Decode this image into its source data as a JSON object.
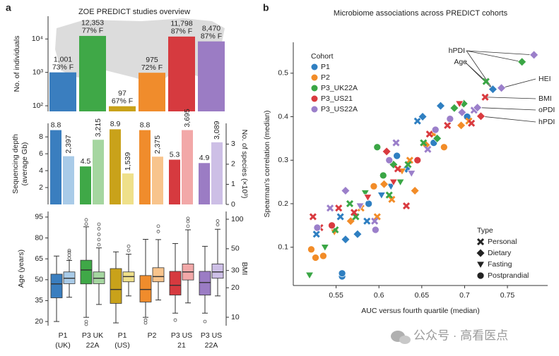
{
  "chart_data": [
    {
      "type": "bar",
      "panel_label": "a",
      "title": "ZOE PREDICT studies overview",
      "y_label": "No. of individuals",
      "log_y": true,
      "ylim": [
        68,
        48000
      ],
      "yticks": [
        {
          "value": 100,
          "label": "10²"
        },
        {
          "value": 1000,
          "label": "10³"
        },
        {
          "value": 10000,
          "label": "10⁴"
        }
      ],
      "values": [
        1001,
        12353,
        97,
        975,
        11798,
        8470
      ],
      "value_labels": [
        "1,001",
        "12,353",
        "97",
        "975",
        "11,798",
        "8,470"
      ],
      "female_share": [
        73,
        77,
        67,
        72,
        87,
        87
      ],
      "female_share_labels": [
        "73% F",
        "77% F",
        "67% F",
        "72% F",
        "87% F",
        "87% F"
      ],
      "colors": [
        "#3a7ebf",
        "#3fa847",
        "#c9a21a",
        "#f08c2c",
        "#d63a3f",
        "#9b7cc4"
      ]
    },
    {
      "type": "paired_bar",
      "y_label": [
        "Sequencing depth",
        "(average Gb)"
      ],
      "y2_label": "No. of species (×10³)",
      "ylim": [
        0,
        9.6
      ],
      "yticks": [
        2,
        4,
        6,
        8
      ],
      "y2lim": [
        0,
        4.03
      ],
      "y2ticks": [
        0,
        1,
        2,
        3
      ],
      "series": [
        {
          "values": [
            8.8,
            4.5,
            8.9,
            8.8,
            5.3,
            4.9
          ],
          "colors": [
            "#3a7ebf",
            "#3fa847",
            "#c9a21a",
            "#f08c2c",
            "#d63a3f",
            "#9b7cc4"
          ]
        },
        {
          "axis": "y2",
          "values": [
            2.397,
            3.215,
            1.539,
            2.375,
            3.695,
            3.089
          ],
          "value_labels": [
            "2,397",
            "3,215",
            "1,539",
            "2,375",
            "3,695",
            "3,089"
          ],
          "colors": [
            "#a9cbe8",
            "#a5d6a0",
            "#efe08a",
            "#f8c48c",
            "#f2a8a8",
            "#cdbfe6"
          ]
        }
      ]
    },
    {
      "type": "box",
      "y_label": "Age (years)",
      "y2_label": "BMI",
      "categories": [
        [
          "P1",
          "(UK)"
        ],
        [
          "P3 UK",
          "22A"
        ],
        [
          "P1",
          "(US)"
        ],
        [
          "P2"
        ],
        [
          "P3 US",
          "21"
        ],
        [
          "P3 US",
          "22A"
        ]
      ],
      "ylim": [
        17,
        99
      ],
      "yticks": [
        20,
        35,
        50,
        65,
        80,
        95
      ],
      "y2_log": true,
      "y2lim": [
        8.2,
        120
      ],
      "y2ticks": [
        10,
        20,
        30,
        50,
        100
      ],
      "series": [
        {
          "colors": [
            "#3a7ebf",
            "#3fa847",
            "#c9a21a",
            "#f08c2c",
            "#d63a3f",
            "#9b7cc4"
          ],
          "boxes": [
            {
              "whislo": 20,
              "q1": 37,
              "med": 47,
              "q3": 54,
              "whishi": 67,
              "outliers": []
            },
            {
              "whislo": 23,
              "q1": 47,
              "med": 57,
              "q3": 64,
              "whishi": 88,
              "outliers": [
                90,
                93,
                18,
                20
              ]
            },
            {
              "whislo": 19,
              "q1": 33,
              "med": 43,
              "q3": 58,
              "whishi": 70,
              "outliers": []
            },
            {
              "whislo": 23,
              "q1": 34,
              "med": 43,
              "q3": 53,
              "whishi": 79,
              "outliers": [
                19,
                21
              ]
            },
            {
              "whislo": 26,
              "q1": 39,
              "med": 46,
              "q3": 56,
              "whishi": 76,
              "outliers": [
                21
              ]
            },
            {
              "whislo": 26,
              "q1": 39,
              "med": 48,
              "q3": 56,
              "whishi": 74,
              "outliers": [
                20
              ]
            }
          ]
        },
        {
          "axis": "y2",
          "colors": [
            "#a9cbe8",
            "#a5d6a0",
            "#efe08a",
            "#f8c48c",
            "#f2a8a8",
            "#cdbfe6"
          ],
          "boxes": [
            {
              "whislo": 16,
              "q1": 22,
              "med": 25,
              "q3": 29,
              "whishi": 38,
              "outliers": [
                40,
                43,
                46,
                48
              ]
            },
            {
              "whislo": 13.5,
              "q1": 22,
              "med": 25,
              "q3": 29,
              "whishi": 51,
              "outliers": [
                55,
                62,
                70,
                80,
                89
              ]
            },
            {
              "whislo": 16.5,
              "q1": 23,
              "med": 26,
              "q3": 29,
              "whishi": 44,
              "outliers": [
                48,
                53
              ]
            },
            {
              "whislo": 15,
              "q1": 23,
              "med": 26,
              "q3": 32,
              "whishi": 62,
              "outliers": [
                75,
                85
              ]
            },
            {
              "whislo": 14,
              "q1": 24,
              "med": 29,
              "q3": 35,
              "whishi": 78,
              "outliers": [
                85,
                95,
                102
              ]
            },
            {
              "whislo": 16.5,
              "q1": 25,
              "med": 29,
              "q3": 35,
              "whishi": 79,
              "outliers": [
                88,
                96
              ]
            }
          ]
        }
      ]
    },
    {
      "type": "scatter",
      "panel_label": "b",
      "title": "Microbiome associations across PREDICT cohorts",
      "x_label": "AUC versus fourth quartile (median)",
      "y_label": "Spearman's correlation (median)",
      "xlim": [
        0.5,
        0.797
      ],
      "xticks": [
        0.55,
        0.6,
        0.65,
        0.7,
        0.75
      ],
      "ylim": [
        0.012,
        0.571
      ],
      "yticks": [
        0.1,
        0.2,
        0.3,
        0.4,
        0.5
      ],
      "legend_title": "Cohort",
      "legend_corner": "top-left",
      "type_legend": {
        "title": "Type",
        "corner": "bottom-right",
        "items": [
          "Personal",
          "Dietary",
          "Fasting",
          "Postprandial"
        ]
      },
      "series": [
        {
          "name": "P1",
          "color": "#2f7fc1",
          "x": [
            0.557,
            0.557,
            0.527,
            0.561,
            0.575,
            0.586,
            0.603,
            0.614,
            0.632,
            0.645,
            0.651,
            0.664,
            0.672,
            0.703,
            0.733,
            0.621,
            0.588,
            0.555
          ],
          "y": [
            0.033,
            0.04,
            0.13,
            0.118,
            0.13,
            0.16,
            0.22,
            0.24,
            0.28,
            0.39,
            0.4,
            0.34,
            0.425,
            0.4,
            0.463,
            0.31,
            0.2,
            0.17
          ],
          "types": [
            "Postprandial",
            "Postprandial",
            "Personal",
            "Dietary",
            "Dietary",
            "Personal",
            "Fasting",
            "Fasting",
            "Dietary",
            "Personal",
            "Dietary",
            "Postprandial",
            "Dietary",
            "Postprandial",
            "Dietary",
            "Postprandial",
            "Postprandial",
            "Personal"
          ]
        },
        {
          "name": "P2",
          "color": "#f28c28",
          "x": [
            0.521,
            0.526,
            0.535,
            0.548,
            0.567,
            0.579,
            0.594,
            0.606,
            0.615,
            0.627,
            0.636,
            0.655,
            0.664,
            0.676,
            0.696,
            0.705,
            0.642,
            0.598
          ],
          "y": [
            0.095,
            0.076,
            0.08,
            0.135,
            0.16,
            0.19,
            0.24,
            0.245,
            0.21,
            0.275,
            0.3,
            0.335,
            0.36,
            0.33,
            0.38,
            0.39,
            0.23,
            0.17
          ],
          "types": [
            "Postprandial",
            "Postprandial",
            "Postprandial",
            "Fasting",
            "Dietary",
            "Personal",
            "Postprandial",
            "Dietary",
            "Personal",
            "Fasting",
            "Personal",
            "Dietary",
            "Personal",
            "Postprandial",
            "Dietary",
            "Personal",
            "Dietary",
            "Personal"
          ]
        },
        {
          "name": "P3_UK22A",
          "color": "#3aa645",
          "x": [
            0.519,
            0.537,
            0.549,
            0.566,
            0.573,
            0.584,
            0.605,
            0.617,
            0.625,
            0.634,
            0.652,
            0.668,
            0.688,
            0.699,
            0.725,
            0.767,
            0.612,
            0.598
          ],
          "y": [
            0.036,
            0.1,
            0.14,
            0.2,
            0.17,
            0.225,
            0.265,
            0.29,
            0.25,
            0.29,
            0.34,
            0.35,
            0.42,
            0.43,
            0.481,
            0.526,
            0.22,
            0.33
          ],
          "types": [
            "Fasting",
            "Fasting",
            "Personal",
            "Personal",
            "Personal",
            "Fasting",
            "Postprandial",
            "Dietary",
            "Fasting",
            "Personal",
            "Personal",
            "Dietary",
            "Dietary",
            "Dietary",
            "Personal",
            "Dietary",
            "Personal",
            "Postprandial"
          ]
        },
        {
          "name": "P3_US21",
          "color": "#d93a3f",
          "x": [
            0.523,
            0.531,
            0.545,
            0.553,
            0.571,
            0.587,
            0.609,
            0.617,
            0.622,
            0.645,
            0.659,
            0.68,
            0.694,
            0.708,
            0.719,
            0.724,
            0.632
          ],
          "y": [
            0.17,
            0.145,
            0.15,
            0.19,
            0.18,
            0.215,
            0.32,
            0.25,
            0.28,
            0.3,
            0.36,
            0.38,
            0.43,
            0.385,
            0.401,
            0.445,
            0.195
          ],
          "types": [
            "Personal",
            "Personal",
            "Postprandial",
            "Personal",
            "Personal",
            "Fasting",
            "Dietary",
            "Fasting",
            "Personal",
            "Postprandial",
            "Personal",
            "Personal",
            "Fasting",
            "Personal",
            "Dietary",
            "Personal",
            "Personal"
          ]
        },
        {
          "name": "P3_US22A",
          "color": "#9b7fca",
          "x": [
            0.528,
            0.543,
            0.561,
            0.578,
            0.595,
            0.596,
            0.612,
            0.62,
            0.638,
            0.657,
            0.666,
            0.683,
            0.697,
            0.711,
            0.715,
            0.743,
            0.781
          ],
          "y": [
            0.145,
            0.19,
            0.23,
            0.195,
            0.16,
            0.14,
            0.3,
            0.34,
            0.27,
            0.325,
            0.37,
            0.395,
            0.41,
            0.415,
            0.421,
            0.466,
            0.542
          ],
          "types": [
            "Postprandial",
            "Personal",
            "Dietary",
            "Fasting",
            "Personal",
            "Postprandial",
            "Postprandial",
            "Personal",
            "Fasting",
            "Personal",
            "Postprandial",
            "Postprandial",
            "Dietary",
            "Personal",
            "Dietary",
            "Dietary",
            "Dietary"
          ]
        }
      ],
      "annotations": [
        {
          "text": "hPDI",
          "targets": [
            [
              0.781,
              0.542
            ],
            [
              0.767,
              0.526
            ],
            [
              0.733,
              0.463
            ]
          ]
        },
        {
          "text": "Age",
          "targets": [
            [
              0.725,
              0.481
            ],
            [
              0.733,
              0.463
            ]
          ]
        },
        {
          "text": "HEI",
          "targets": [
            [
              0.743,
              0.466
            ]
          ]
        },
        {
          "text": "BMI",
          "targets": [
            [
              0.724,
              0.445
            ]
          ]
        },
        {
          "text": "oPDI",
          "targets": [
            [
              0.715,
              0.421
            ]
          ]
        },
        {
          "text": "hPDI",
          "targets": [
            [
              0.719,
              0.401
            ]
          ]
        }
      ]
    }
  ],
  "watermark": "公众号 · 高看医点"
}
